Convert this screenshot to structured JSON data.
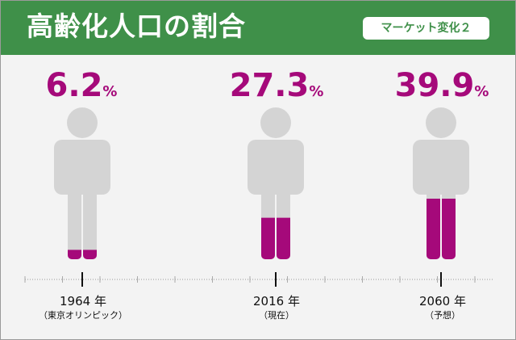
{
  "title": "高齢化人口の割合",
  "badge": "マーケット変化２",
  "colors": {
    "header": "#3f9049",
    "accent": "#a5097a",
    "figure": "#d4d4d4",
    "background": "#f3f3f3"
  },
  "chart_data": {
    "type": "bar",
    "title": "高齢化人口の割合",
    "unit": "%",
    "categories": [
      "1964 年",
      "2016 年",
      "2060 年"
    ],
    "category_notes": [
      "（東京オリンピック）",
      "（現在）",
      "（予想）"
    ],
    "values": [
      6.2,
      27.3,
      39.9
    ],
    "value_labels": [
      "6.2",
      "27.3",
      "39.9"
    ],
    "ylim": [
      0,
      100
    ]
  }
}
